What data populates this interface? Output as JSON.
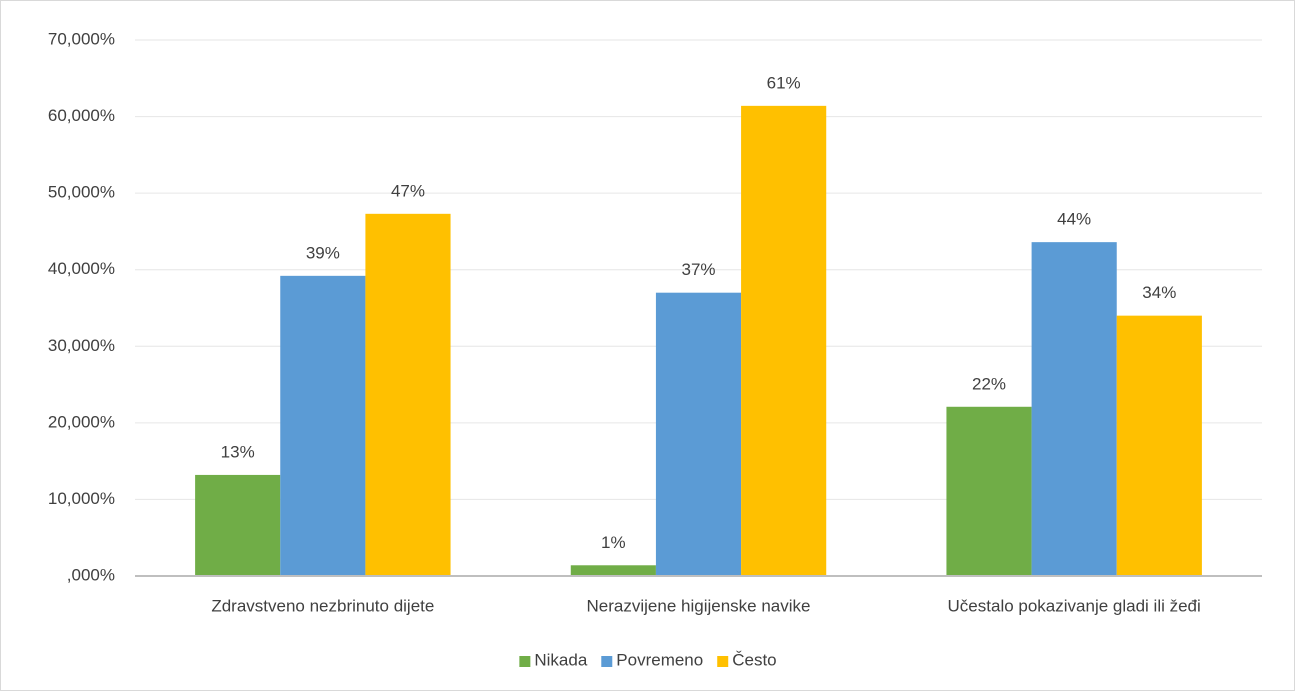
{
  "chart_data": {
    "type": "bar",
    "categories": [
      "Zdravstveno nezbrinuto dijete",
      "Nerazvijene higijenske navike",
      "Učestalo pokazivanje gladi ili žeđi"
    ],
    "series": [
      {
        "name": "Nikada",
        "color": "#70ad47",
        "values": [
          13.2,
          1.4,
          22.1
        ],
        "value_labels": [
          "13%",
          "1%",
          "22%"
        ]
      },
      {
        "name": "Povremeno",
        "color": "#5b9bd5",
        "values": [
          39.2,
          37.0,
          43.6
        ],
        "value_labels": [
          "39%",
          "37%",
          "44%"
        ]
      },
      {
        "name": "Često",
        "color": "#ffc000",
        "values": [
          47.3,
          61.4,
          34.0
        ],
        "value_labels": [
          "47%",
          "61%",
          "34%"
        ]
      }
    ],
    "ylim": [
      0,
      70
    ],
    "yticks": [
      {
        "value": 0,
        "label": ",000%"
      },
      {
        "value": 10,
        "label": "10,000%"
      },
      {
        "value": 20,
        "label": "20,000%"
      },
      {
        "value": 30,
        "label": "30,000%"
      },
      {
        "value": 40,
        "label": "40,000%"
      },
      {
        "value": 50,
        "label": "50,000%"
      },
      {
        "value": 60,
        "label": "60,000%"
      },
      {
        "value": 70,
        "label": "70,000%"
      }
    ],
    "grid": true,
    "legend": "bottom"
  }
}
